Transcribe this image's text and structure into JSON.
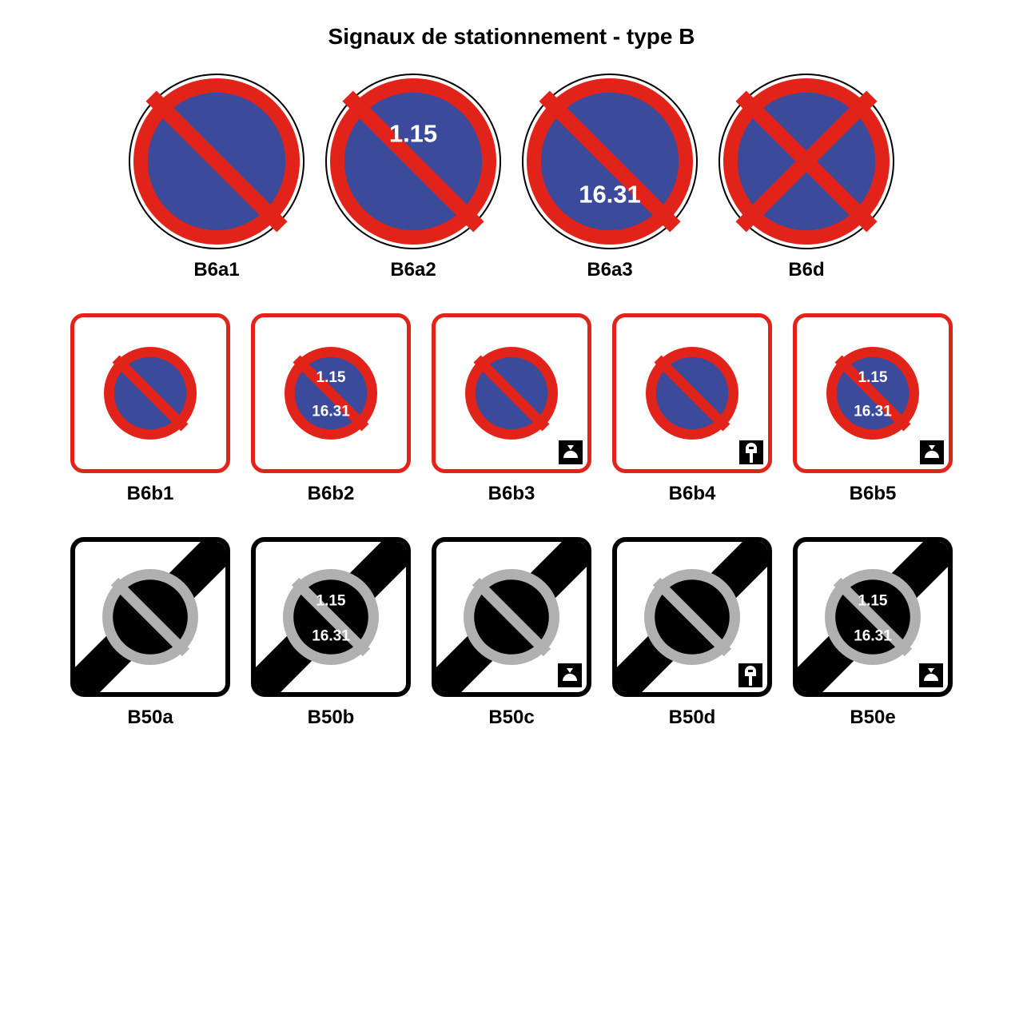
{
  "title": "Signaux de stationnement - type B",
  "colors": {
    "red": "#e2231a",
    "blue": "#3b4a9b",
    "black": "#000000",
    "white": "#ffffff",
    "grey": "#b0b0b0"
  },
  "sizes": {
    "row1_sign": 220,
    "row2_sign": 200,
    "row3_sign": 200,
    "label_fontsize": 24,
    "title_fontsize": 28
  },
  "row1": [
    {
      "code": "B6a1",
      "top_text": "",
      "bottom_text": "",
      "cross": false
    },
    {
      "code": "B6a2",
      "top_text": "1.15",
      "bottom_text": "",
      "cross": false
    },
    {
      "code": "B6a3",
      "top_text": "",
      "bottom_text": "16.31",
      "cross": false
    },
    {
      "code": "B6d",
      "top_text": "",
      "bottom_text": "",
      "cross": true
    }
  ],
  "row2": [
    {
      "code": "B6b1",
      "top_text": "",
      "bottom_text": "",
      "corner": "none"
    },
    {
      "code": "B6b2",
      "top_text": "1.15",
      "bottom_text": "16.31",
      "corner": "none"
    },
    {
      "code": "B6b3",
      "top_text": "",
      "bottom_text": "",
      "corner": "disc"
    },
    {
      "code": "B6b4",
      "top_text": "",
      "bottom_text": "",
      "corner": "meter"
    },
    {
      "code": "B6b5",
      "top_text": "1.15",
      "bottom_text": "16.31",
      "corner": "disc"
    }
  ],
  "row3": [
    {
      "code": "B50a",
      "top_text": "",
      "bottom_text": "",
      "corner": "none"
    },
    {
      "code": "B50b",
      "top_text": "1.15",
      "bottom_text": "16.31",
      "corner": "none"
    },
    {
      "code": "B50c",
      "top_text": "",
      "bottom_text": "",
      "corner": "disc"
    },
    {
      "code": "B50d",
      "top_text": "",
      "bottom_text": "",
      "corner": "meter"
    },
    {
      "code": "B50e",
      "top_text": "1.15",
      "bottom_text": "16.31",
      "corner": "disc"
    }
  ]
}
